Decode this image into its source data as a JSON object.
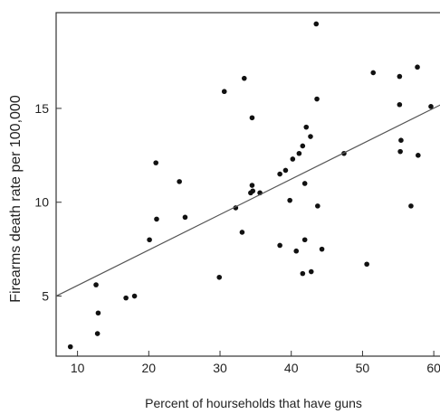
{
  "chart_data": {
    "type": "scatter",
    "title": "",
    "xlabel": "Percent of  hourseholds that have guns",
    "ylabel": "Firearms death rate per 100,000",
    "xlim": [
      7,
      61
    ],
    "ylim": [
      1.8,
      20.1
    ],
    "xticks": [
      10,
      20,
      30,
      40,
      50,
      60
    ],
    "yticks": [
      5,
      10,
      15
    ],
    "grid": false,
    "legend": "none",
    "colors": {
      "point": "#111111",
      "line": "#555555",
      "axis": "#333333"
    },
    "trendline": {
      "x": [
        7,
        61
      ],
      "y": [
        5.0,
        15.2
      ]
    },
    "series": [
      {
        "points": [
          [
            9,
            2.3
          ],
          [
            12.6,
            5.6
          ],
          [
            12.9,
            4.1
          ],
          [
            12.8,
            3.0
          ],
          [
            16.8,
            4.9
          ],
          [
            18,
            5.0
          ],
          [
            20.1,
            8.0
          ],
          [
            21,
            12.1
          ],
          [
            21.1,
            9.1
          ],
          [
            24.3,
            11.1
          ],
          [
            25.1,
            9.2
          ],
          [
            29.9,
            6.0
          ],
          [
            30.6,
            15.9
          ],
          [
            32.2,
            9.7
          ],
          [
            33.1,
            8.4
          ],
          [
            33.4,
            16.6
          ],
          [
            34.5,
            14.5
          ],
          [
            34.5,
            10.9
          ],
          [
            34.3,
            10.5
          ],
          [
            34.6,
            10.6
          ],
          [
            35.6,
            10.5
          ],
          [
            38.4,
            11.5
          ],
          [
            38.4,
            7.7
          ],
          [
            39.2,
            11.7
          ],
          [
            39.8,
            10.1
          ],
          [
            40.2,
            12.3
          ],
          [
            40.7,
            7.4
          ],
          [
            41.1,
            12.6
          ],
          [
            41.6,
            13.0
          ],
          [
            41.6,
            6.2
          ],
          [
            41.9,
            11.0
          ],
          [
            41.9,
            8.0
          ],
          [
            42.1,
            14.0
          ],
          [
            42.7,
            13.5
          ],
          [
            42.8,
            6.3
          ],
          [
            43.5,
            19.5
          ],
          [
            43.6,
            15.5
          ],
          [
            43.7,
            9.8
          ],
          [
            44.3,
            7.5
          ],
          [
            47.4,
            12.6
          ],
          [
            50.6,
            6.7
          ],
          [
            51.5,
            16.9
          ],
          [
            55.2,
            16.7
          ],
          [
            55.2,
            15.2
          ],
          [
            55.4,
            13.3
          ],
          [
            55.3,
            12.7
          ],
          [
            56.8,
            9.8
          ],
          [
            57.7,
            17.2
          ],
          [
            57.8,
            12.5
          ],
          [
            59.6,
            15.1
          ]
        ]
      }
    ]
  }
}
